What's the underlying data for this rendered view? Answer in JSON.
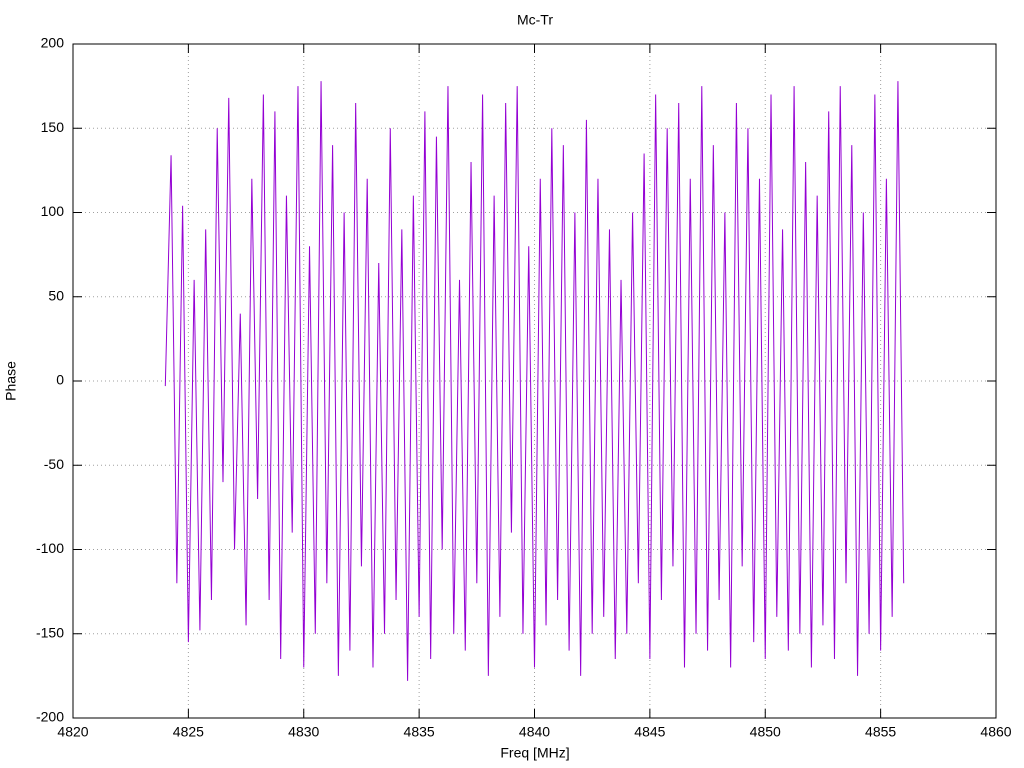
{
  "chart_data": {
    "type": "line",
    "title": "Mc-Tr",
    "x_label": "Freq [MHz]",
    "y_label": "Phase",
    "color": "#9400d3",
    "grid": true,
    "xlim": [
      4820,
      4860
    ],
    "xticks": [
      4820,
      4825,
      4830,
      4835,
      4840,
      4845,
      4850,
      4855,
      4860
    ],
    "ylim": [
      -200,
      200
    ],
    "yticks": [
      -200,
      -150,
      -100,
      -50,
      0,
      50,
      100,
      150,
      200
    ],
    "x": [
      4824,
      4824.25,
      4824.5,
      4824.75,
      4825,
      4825.25,
      4825.5,
      4825.75,
      4826,
      4826.25,
      4826.5,
      4826.75,
      4827,
      4827.25,
      4827.5,
      4827.75,
      4828,
      4828.25,
      4828.5,
      4828.75,
      4829,
      4829.25,
      4829.5,
      4829.75,
      4830,
      4830.25,
      4830.5,
      4830.75,
      4831,
      4831.25,
      4831.5,
      4831.75,
      4832,
      4832.25,
      4832.5,
      4832.75,
      4833,
      4833.25,
      4833.5,
      4833.75,
      4834,
      4834.25,
      4834.5,
      4834.75,
      4835,
      4835.25,
      4835.5,
      4835.75,
      4836,
      4836.25,
      4836.5,
      4836.75,
      4837,
      4837.25,
      4837.5,
      4837.75,
      4838,
      4838.25,
      4838.5,
      4838.75,
      4839,
      4839.25,
      4839.5,
      4839.75,
      4840,
      4840.25,
      4840.5,
      4840.75,
      4841,
      4841.25,
      4841.5,
      4841.75,
      4842,
      4842.25,
      4842.5,
      4842.75,
      4843,
      4843.25,
      4843.5,
      4843.75,
      4844,
      4844.25,
      4844.5,
      4844.75,
      4845,
      4845.25,
      4845.5,
      4845.75,
      4846,
      4846.25,
      4846.5,
      4846.75,
      4847,
      4847.25,
      4847.5,
      4847.75,
      4848,
      4848.25,
      4848.5,
      4848.75,
      4849,
      4849.25,
      4849.5,
      4849.75,
      4850,
      4850.25,
      4850.5,
      4850.75,
      4851,
      4851.25,
      4851.5,
      4851.75,
      4852,
      4852.25,
      4852.5,
      4852.75,
      4853,
      4853.25,
      4853.5,
      4853.75,
      4854,
      4854.25,
      4854.5,
      4854.75,
      4855,
      4855.25,
      4855.5,
      4855.75,
      4856
    ],
    "values": [
      -3,
      134,
      -120,
      104,
      -155,
      60,
      -148,
      90,
      -130,
      150,
      -60,
      168,
      -100,
      40,
      -145,
      120,
      -70,
      170,
      -130,
      160,
      -165,
      110,
      -90,
      175,
      -170,
      80,
      -150,
      178,
      -120,
      140,
      -175,
      100,
      -160,
      165,
      -110,
      120,
      -170,
      70,
      -150,
      150,
      -130,
      90,
      -178,
      110,
      -140,
      160,
      -165,
      145,
      -100,
      175,
      -150,
      60,
      -160,
      130,
      -120,
      170,
      -175,
      110,
      -140,
      165,
      -90,
      175,
      -150,
      80,
      -170,
      120,
      -145,
      150,
      -130,
      140,
      -160,
      100,
      -175,
      155,
      -150,
      120,
      -140,
      90,
      -165,
      60,
      -150,
      100,
      -120,
      135,
      -165,
      170,
      -130,
      150,
      -110,
      165,
      -170,
      120,
      -150,
      175,
      -160,
      140,
      -130,
      100,
      -170,
      165,
      -110,
      150,
      -155,
      120,
      -165,
      170,
      -140,
      90,
      -160,
      175,
      -150,
      130,
      -170,
      110,
      -145,
      160,
      -165,
      175,
      -120,
      140,
      -175,
      100,
      -150,
      170,
      -160,
      120,
      -140,
      178,
      -120
    ]
  }
}
